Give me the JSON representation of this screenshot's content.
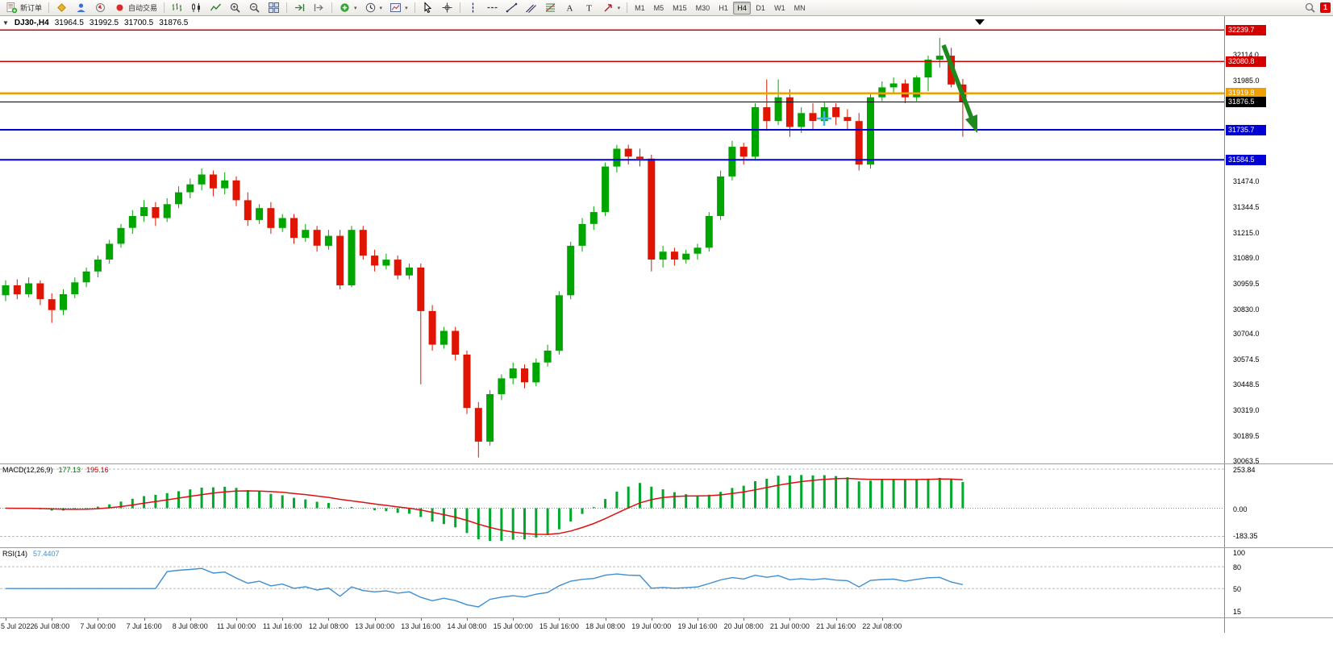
{
  "toolbar": {
    "new_order_label": "新订单",
    "auto_trading_label": "自动交易",
    "timeframes": [
      "M1",
      "M5",
      "M15",
      "M30",
      "H1",
      "H4",
      "D1",
      "W1",
      "MN"
    ],
    "active_timeframe": "H4",
    "notification_badge": "1"
  },
  "chart": {
    "info": {
      "symbol_period": "DJ30-,H4",
      "open": "31964.5",
      "high": "31992.5",
      "low": "31700.5",
      "close": "31876.5"
    },
    "price_axis_labels": [
      "32114.0",
      "31985.0",
      "31474.0",
      "31344.5",
      "31215.0",
      "31089.0",
      "30959.5",
      "30830.0",
      "30704.0",
      "30574.5",
      "30448.5",
      "30319.0",
      "30189.5",
      "30063.5"
    ],
    "price_lines": [
      {
        "price": 32239.7,
        "label": "32239.7",
        "color": "#d40000",
        "width": 1.5
      },
      {
        "price": 32080.8,
        "label": "32080.8",
        "color": "#d40000",
        "width": 1.5
      },
      {
        "price": 31919.8,
        "label": "31919.8",
        "color": "#ef9f00",
        "width": 2.5
      },
      {
        "price": 31876.5,
        "label": "31876.5",
        "color": "#000000",
        "width": 1
      },
      {
        "price": 31735.7,
        "label": "31735.7",
        "color": "#0000d4",
        "width": 2
      },
      {
        "price": 31584.5,
        "label": "31584.5",
        "color": "#0000d4",
        "width": 2
      }
    ]
  },
  "chart_data": {
    "type": "candlestick",
    "symbol": "DJ30-",
    "timeframe": "H4",
    "price_range": [
      30050,
      32310
    ],
    "up_color": "#00a600",
    "down_color": "#e01400",
    "time_labels": [
      "5 Jul 2022",
      "6 Jul 08:00",
      "7 Jul 00:00",
      "7 Jul 16:00",
      "8 Jul 08:00",
      "11 Jul 00:00",
      "11 Jul 16:00",
      "12 Jul 08:00",
      "13 Jul 00:00",
      "13 Jul 16:00",
      "14 Jul 08:00",
      "15 Jul 00:00",
      "15 Jul 16:00",
      "18 Jul 08:00",
      "19 Jul 00:00",
      "19 Jul 16:00",
      "20 Jul 08:00",
      "21 Jul 00:00",
      "21 Jul 16:00",
      "22 Jul 08:00"
    ],
    "candles": [
      [
        30900,
        30975,
        30870,
        30950
      ],
      [
        30950,
        30980,
        30880,
        30905
      ],
      [
        30905,
        30990,
        30890,
        30960
      ],
      [
        30960,
        30975,
        30850,
        30880
      ],
      [
        30880,
        30910,
        30760,
        30825
      ],
      [
        30825,
        30930,
        30800,
        30905
      ],
      [
        30905,
        30990,
        30885,
        30965
      ],
      [
        30965,
        31040,
        30940,
        31020
      ],
      [
        31020,
        31100,
        30990,
        31080
      ],
      [
        31080,
        31180,
        31060,
        31160
      ],
      [
        31160,
        31260,
        31140,
        31240
      ],
      [
        31240,
        31330,
        31210,
        31300
      ],
      [
        31300,
        31380,
        31270,
        31345
      ],
      [
        31345,
        31370,
        31250,
        31290
      ],
      [
        31290,
        31390,
        31270,
        31360
      ],
      [
        31360,
        31450,
        31340,
        31420
      ],
      [
        31420,
        31490,
        31390,
        31460
      ],
      [
        31460,
        31540,
        31430,
        31510
      ],
      [
        31510,
        31530,
        31400,
        31440
      ],
      [
        31440,
        31520,
        31410,
        31480
      ],
      [
        31480,
        31500,
        31350,
        31380
      ],
      [
        31380,
        31420,
        31250,
        31280
      ],
      [
        31280,
        31360,
        31260,
        31340
      ],
      [
        31340,
        31370,
        31210,
        31240
      ],
      [
        31240,
        31310,
        31220,
        31290
      ],
      [
        31290,
        31310,
        31160,
        31190
      ],
      [
        31190,
        31260,
        31170,
        31230
      ],
      [
        31230,
        31250,
        31120,
        31150
      ],
      [
        31150,
        31230,
        31130,
        31200
      ],
      [
        31200,
        31230,
        30930,
        30950
      ],
      [
        30950,
        31250,
        30940,
        31230
      ],
      [
        31230,
        31250,
        31080,
        31100
      ],
      [
        31100,
        31130,
        31020,
        31050
      ],
      [
        31050,
        31110,
        31030,
        31080
      ],
      [
        31080,
        31100,
        30980,
        31000
      ],
      [
        31000,
        31060,
        30980,
        31040
      ],
      [
        31040,
        31060,
        30450,
        30820
      ],
      [
        30820,
        30850,
        30620,
        30650
      ],
      [
        30650,
        30740,
        30630,
        30720
      ],
      [
        30720,
        30740,
        30570,
        30600
      ],
      [
        30600,
        30620,
        30300,
        30330
      ],
      [
        30330,
        30360,
        30080,
        30160
      ],
      [
        30160,
        30420,
        30140,
        30400
      ],
      [
        30400,
        30500,
        30370,
        30480
      ],
      [
        30480,
        30560,
        30450,
        30530
      ],
      [
        30530,
        30550,
        30430,
        30460
      ],
      [
        30460,
        30580,
        30440,
        30560
      ],
      [
        30560,
        30650,
        30540,
        30620
      ],
      [
        30620,
        30920,
        30600,
        30900
      ],
      [
        30900,
        31170,
        30880,
        31150
      ],
      [
        31150,
        31290,
        31120,
        31260
      ],
      [
        31260,
        31350,
        31230,
        31320
      ],
      [
        31320,
        31570,
        31300,
        31550
      ],
      [
        31550,
        31660,
        31520,
        31640
      ],
      [
        31640,
        31660,
        31560,
        31600
      ],
      [
        31600,
        31640,
        31550,
        31590
      ],
      [
        31590,
        31610,
        31020,
        31080
      ],
      [
        31080,
        31150,
        31040,
        31120
      ],
      [
        31120,
        31140,
        31050,
        31080
      ],
      [
        31080,
        31130,
        31060,
        31110
      ],
      [
        31110,
        31160,
        31080,
        31140
      ],
      [
        31140,
        31320,
        31120,
        31300
      ],
      [
        31300,
        31530,
        31280,
        31500
      ],
      [
        31500,
        31680,
        31480,
        31650
      ],
      [
        31650,
        31670,
        31560,
        31600
      ],
      [
        31600,
        31870,
        31580,
        31850
      ],
      [
        31850,
        31990,
        31730,
        31780
      ],
      [
        31780,
        31990,
        31760,
        31900
      ],
      [
        31900,
        31940,
        31700,
        31750
      ],
      [
        31750,
        31850,
        31720,
        31820
      ],
      [
        31820,
        31870,
        31740,
        31780
      ],
      [
        31780,
        31880,
        31760,
        31850
      ],
      [
        31850,
        31870,
        31760,
        31800
      ],
      [
        31800,
        31840,
        31740,
        31780
      ],
      [
        31780,
        31820,
        31530,
        31560
      ],
      [
        31560,
        31920,
        31540,
        31900
      ],
      [
        31900,
        31980,
        31880,
        31950
      ],
      [
        31950,
        32000,
        31920,
        31970
      ],
      [
        31970,
        31990,
        31870,
        31900
      ],
      [
        31900,
        32010,
        31880,
        32000
      ],
      [
        32000,
        32110,
        31930,
        32090
      ],
      [
        32090,
        32200,
        32050,
        32110
      ],
      [
        32110,
        32150,
        31950,
        31964.5
      ],
      [
        31964.5,
        31992.5,
        31700.5,
        31876.5
      ]
    ]
  },
  "indicators": {
    "macd": {
      "title": "MACD(12,26,9)",
      "value_main": "177.13",
      "value_signal": "195.16",
      "params": {
        "fast": 12,
        "slow": 26,
        "signal": 9
      },
      "axis_top": "253.84",
      "axis_zero": "0.00",
      "axis_bottom": "-183.35",
      "histogram_color": "#00a82d",
      "signal_color": "#dd1111"
    },
    "rsi": {
      "title": "RSI(14)",
      "value": "57.4407",
      "period": 14,
      "axis_labels": [
        "100",
        "80",
        "50",
        "15"
      ],
      "levels": [
        80,
        50
      ],
      "line_color": "#3e8ed0"
    }
  },
  "annotations": [
    {
      "type": "arrow",
      "color": "#1e8a1e"
    },
    {
      "type": "cross",
      "color": "#45b6e8"
    }
  ]
}
